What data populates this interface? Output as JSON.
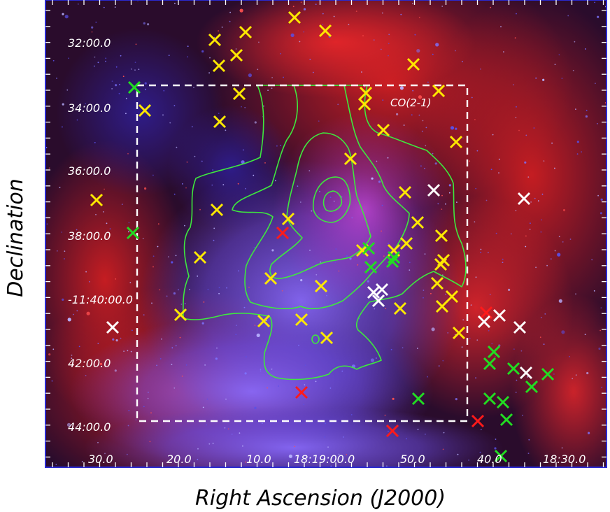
{
  "figure": {
    "xlabel": "Right Ascension (J2000)",
    "ylabel": "Declination",
    "contour_label": "CO(2-1)",
    "ra_ticks": [
      "30.0",
      "20.0",
      "10.0",
      "18:19:00.0",
      "50.0",
      "40.0",
      "18:30.0"
    ],
    "dec_ticks": [
      "32:00.0",
      "34:00.0",
      "36:00.0",
      "38:00.0",
      "-11:40:00.0",
      "42:00.0",
      "44:00.0"
    ]
  },
  "colors": {
    "frame": "#2a2ad0",
    "background": "#1a0a2e",
    "red_emission": "#d81818",
    "blue_emission": "#6a5cff",
    "contour": "#3ee83e",
    "box": "#ffffff",
    "marker_yellow": "#ffe800",
    "marker_green": "#22dd22",
    "marker_red": "#ff1a1a",
    "marker_white": "#ffffff"
  },
  "marker_groups": [
    "yellow",
    "green",
    "red",
    "white"
  ]
}
